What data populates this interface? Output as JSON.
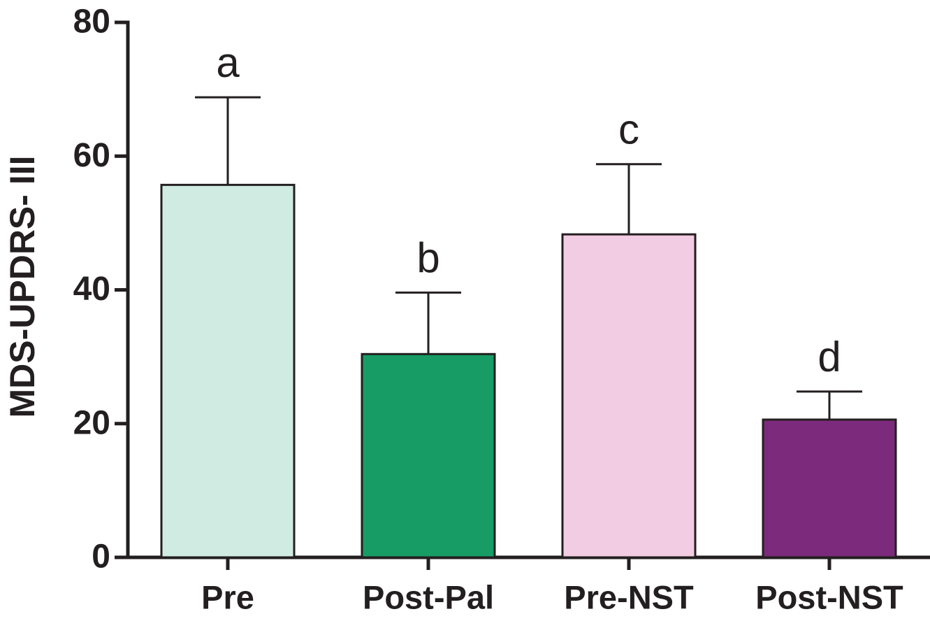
{
  "chart_data": {
    "type": "bar",
    "y_label": "MDS-UPDRS- III",
    "categories": [
      "Pre",
      "Post-Pal",
      "Pre-NST",
      "Post-NST"
    ],
    "values": [
      55.7,
      30.4,
      48.3,
      20.6
    ],
    "errors": [
      13.1,
      9.2,
      10.5,
      4.2
    ],
    "annotations": [
      "a",
      "b",
      "c",
      "d"
    ],
    "colors": [
      "#d0ebe2",
      "#179c66",
      "#f2cce2",
      "#7c2a7b"
    ],
    "ylim": [
      0,
      80
    ],
    "yticks": [
      0,
      20,
      40,
      60,
      80
    ],
    "grid": false
  }
}
